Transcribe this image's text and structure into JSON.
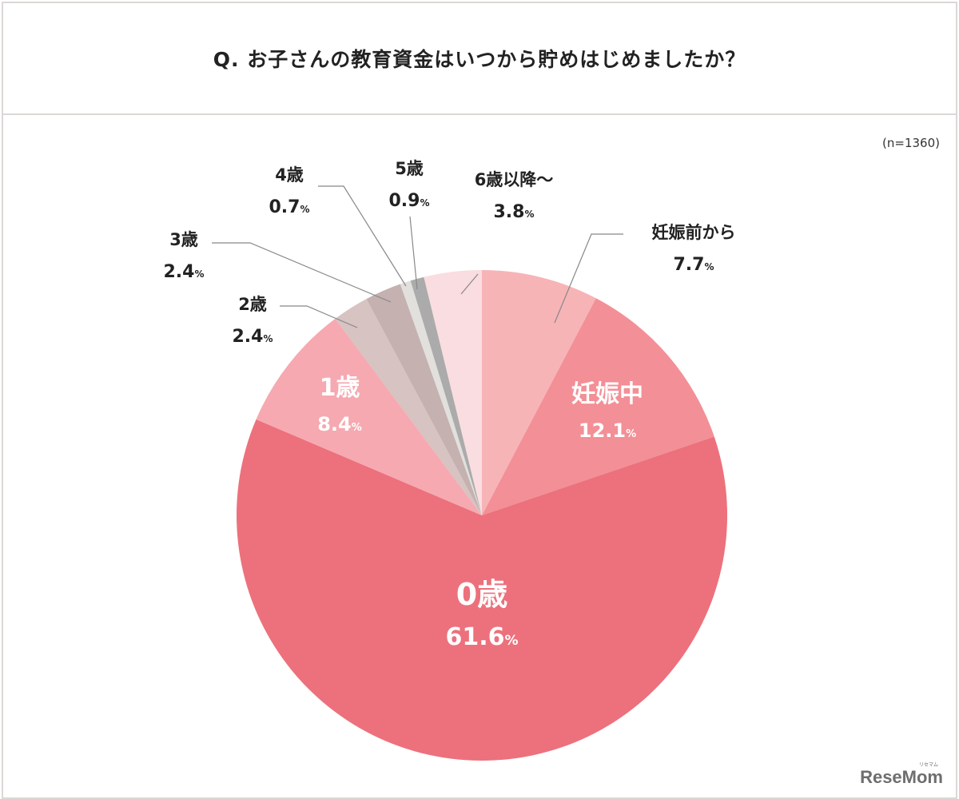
{
  "title": "Q. お子さんの教育資金はいつから貯めはじめましたか？",
  "sample": "(n=1360)",
  "logo": {
    "text": "ReseMom",
    "sub": "リセマム"
  },
  "chart_data": {
    "type": "pie",
    "title": "Q. お子さんの教育資金はいつから貯めはじめましたか？",
    "unit": "%",
    "start": "12 o'clock, clockwise",
    "slices": [
      {
        "label": "妊娠前から",
        "value": 7.7,
        "display": "7.7",
        "color": "#f7b4b7"
      },
      {
        "label": "妊娠中",
        "value": 12.1,
        "display": "12.1",
        "color": "#f38f96"
      },
      {
        "label": "0歳",
        "value": 61.6,
        "display": "61.6",
        "color": "#ec717c"
      },
      {
        "label": "1歳",
        "value": 8.4,
        "display": "8.4",
        "color": "#f6a9b0"
      },
      {
        "label": "2歳",
        "value": 2.4,
        "display": "2.4",
        "color": "#d6c3c2"
      },
      {
        "label": "3歳",
        "value": 2.4,
        "display": "2.4",
        "color": "#c4b1b0"
      },
      {
        "label": "4歳",
        "value": 0.7,
        "display": "0.7",
        "color": "#e1e0dd"
      },
      {
        "label": "5歳",
        "value": 0.9,
        "display": "0.9",
        "color": "#ababab"
      },
      {
        "label": "6歳以降〜",
        "value": 3.8,
        "display": "3.8",
        "color": "#fadde0"
      }
    ]
  }
}
